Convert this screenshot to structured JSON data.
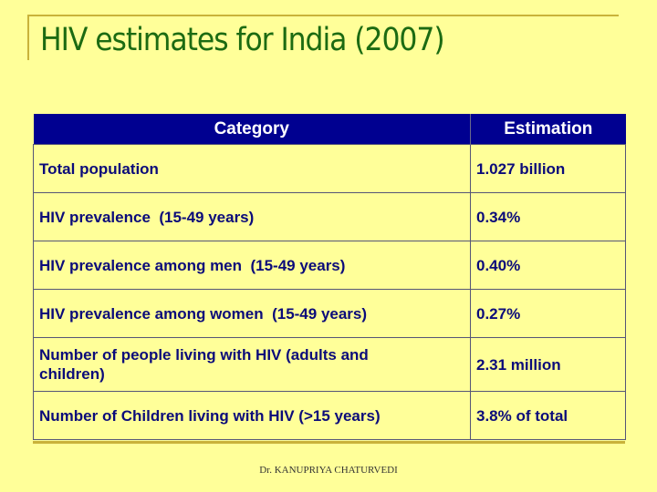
{
  "slide": {
    "title": "HIV estimates for India (2007)",
    "footer": "Dr. KANUPRIYA CHATURVEDI"
  },
  "table": {
    "headers": [
      "Category",
      "Estimation"
    ],
    "rows": [
      {
        "category": "Total population",
        "estimation": "1.027 billion"
      },
      {
        "category": "HIV prevalence  (15-49 years)",
        "estimation": "0.34%"
      },
      {
        "category": "HIV prevalence among men  (15-49 years)",
        "estimation": "0.40%"
      },
      {
        "category": "HIV prevalence among women  (15-49 years)",
        "estimation": "0.27%"
      },
      {
        "category": "Number of people living with HIV (adults and children)",
        "estimation": "2.31 million"
      },
      {
        "category": "Number of Children living with HIV (>15 years)",
        "estimation": "3.8% of total"
      }
    ]
  },
  "colors": {
    "background": "#ffff99",
    "title": "#1c6b12",
    "header_bg": "#000090",
    "cell_text": "#0b0b7a",
    "accent_rule": "#c9b23a"
  }
}
